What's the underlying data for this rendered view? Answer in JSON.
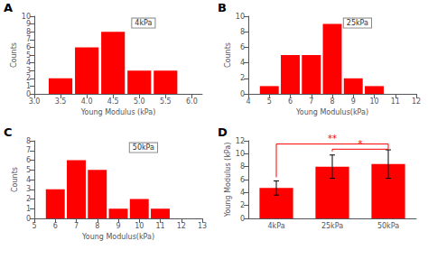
{
  "chart_data": [
    {
      "type": "bar",
      "title": "A",
      "annotations": [
        "4kPa"
      ],
      "x": [
        3.5,
        4.0,
        4.5,
        5.0,
        5.5
      ],
      "values": [
        2,
        6,
        8,
        3,
        3
      ],
      "color": "#FF0000",
      "xlim": [
        3.0,
        6.2
      ],
      "xticks": [
        {
          "value": 3.0,
          "label": "3.0"
        },
        3.5,
        {
          "value": 4.0,
          "label": "4.0"
        },
        4.5,
        {
          "value": 5.0,
          "label": "5.0"
        },
        5.5,
        {
          "value": 6.0,
          "label": "6.0"
        }
      ],
      "ylim": [
        0,
        10
      ],
      "yticks": [
        0,
        1,
        2,
        3,
        4,
        5,
        6,
        7,
        8,
        9,
        10
      ],
      "xlabel": "Young Modulus (kPa)",
      "ylabel": "Counts",
      "grid": false
    },
    {
      "type": "bar",
      "title": "B",
      "annotations": [
        "25kPa"
      ],
      "x": [
        5,
        6,
        7,
        8,
        9,
        10,
        11
      ],
      "values": [
        1,
        5,
        5,
        9,
        2,
        1,
        0
      ],
      "color": "#FF0000",
      "xlim": [
        4,
        12
      ],
      "xticks": [
        4,
        5,
        6,
        7,
        8,
        9,
        10,
        11,
        12
      ],
      "ylim": [
        0,
        10
      ],
      "yticks": [
        0,
        2,
        4,
        6,
        8,
        10
      ],
      "xlabel": "Young Modulus(kPa)",
      "ylabel": "Counts",
      "grid": false
    },
    {
      "type": "bar",
      "title": "C",
      "annotations": [
        "50kPa"
      ],
      "x": [
        6,
        7,
        8,
        9,
        10,
        11,
        12
      ],
      "values": [
        3,
        6,
        5,
        1,
        2,
        1,
        0
      ],
      "color": "#FF0000",
      "xlim": [
        5,
        13
      ],
      "xticks": [
        5,
        6,
        7,
        8,
        9,
        10,
        11,
        12,
        13
      ],
      "ylim": [
        0,
        8
      ],
      "yticks": [
        0,
        1,
        2,
        3,
        4,
        5,
        6,
        7,
        8
      ],
      "xlabel": "Young Modulus(kPa)",
      "ylabel": "Counts",
      "grid": false
    },
    {
      "type": "bar",
      "title": "D",
      "categories": [
        "4kPa",
        "25kPa",
        "50kPa"
      ],
      "values": [
        4.7,
        8.0,
        8.4
      ],
      "errors": [
        1.1,
        1.8,
        2.2
      ],
      "color": "#FF0000",
      "ylim": [
        0,
        12
      ],
      "yticks": [
        0,
        2,
        4,
        6,
        8,
        10,
        12
      ],
      "ylabel": "Young Modulus (kPa)",
      "grid": false,
      "significance": [
        {
          "from": "4kPa",
          "to": "50kPa",
          "y": 11.5,
          "label": "**",
          "color": "#FF0000"
        },
        {
          "from": "25kPa",
          "to": "50kPa",
          "y": 10.7,
          "label": "*",
          "color": "#FF0000"
        }
      ]
    }
  ]
}
